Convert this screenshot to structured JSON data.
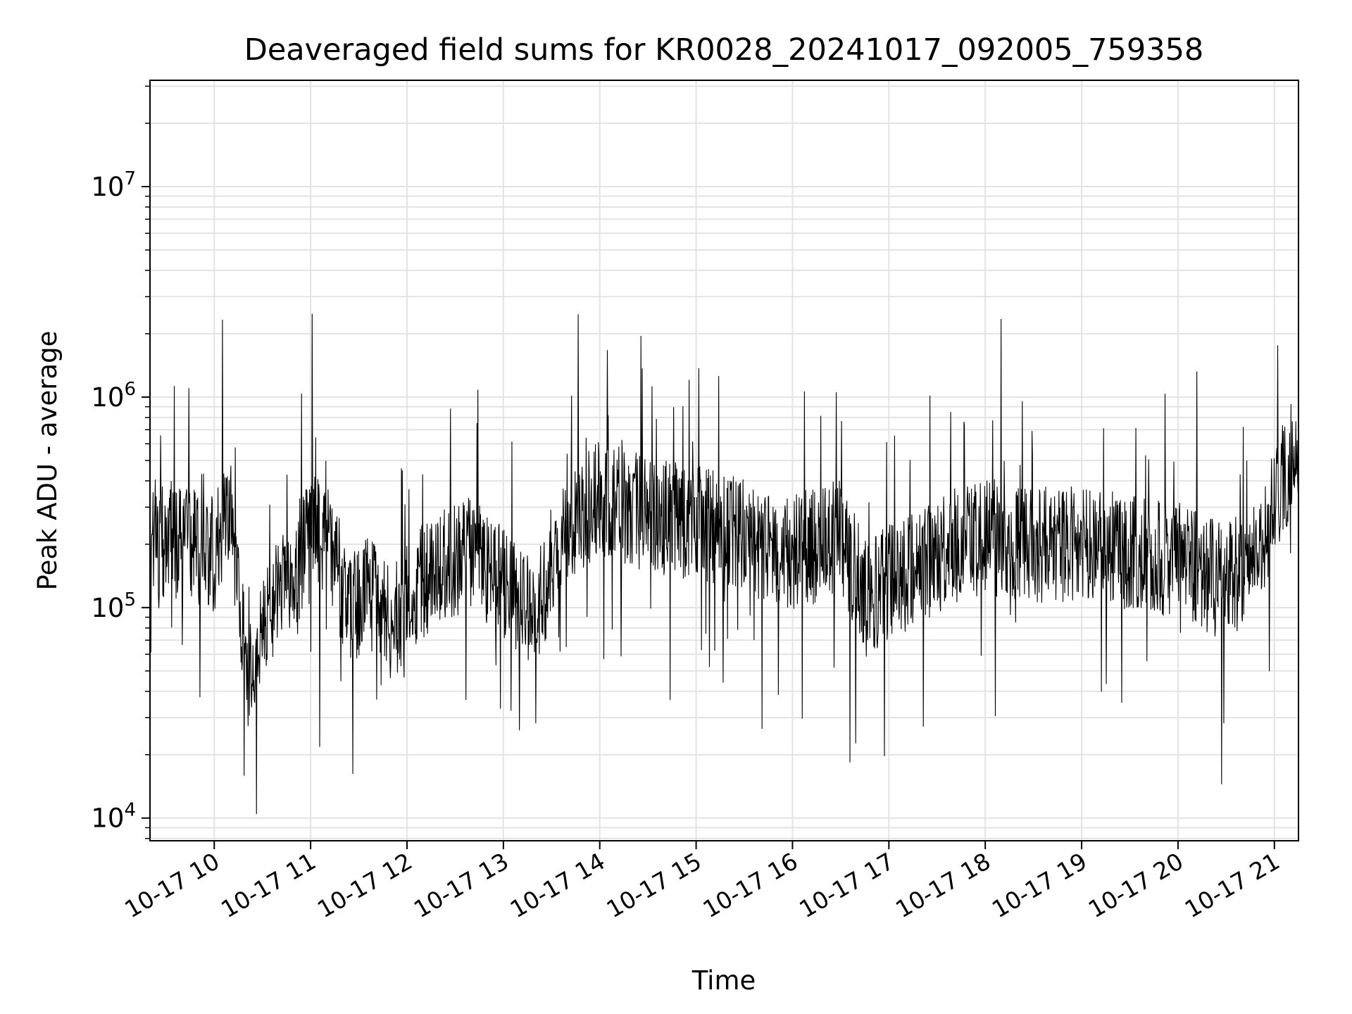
{
  "chart_data": {
    "type": "line",
    "title": "Deaveraged field sums for KR0028_20241017_092005_759358",
    "xlabel": "Time",
    "ylabel": "Peak ADU - average",
    "yscale": "log",
    "xlim": [
      "2024-10-17T09:20",
      "2024-10-17T21:15"
    ],
    "ylim": [
      7800,
      32000000
    ],
    "grid": true,
    "line_color": "#000000",
    "xticks": [
      {
        "t": "2024-10-17T10:00",
        "label": "10-17 10"
      },
      {
        "t": "2024-10-17T11:00",
        "label": "10-17 11"
      },
      {
        "t": "2024-10-17T12:00",
        "label": "10-17 12"
      },
      {
        "t": "2024-10-17T13:00",
        "label": "10-17 13"
      },
      {
        "t": "2024-10-17T14:00",
        "label": "10-17 14"
      },
      {
        "t": "2024-10-17T15:00",
        "label": "10-17 15"
      },
      {
        "t": "2024-10-17T16:00",
        "label": "10-17 16"
      },
      {
        "t": "2024-10-17T17:00",
        "label": "10-17 17"
      },
      {
        "t": "2024-10-17T18:00",
        "label": "10-17 18"
      },
      {
        "t": "2024-10-17T19:00",
        "label": "10-17 19"
      },
      {
        "t": "2024-10-17T20:00",
        "label": "10-17 20"
      },
      {
        "t": "2024-10-17T21:00",
        "label": "10-17 21"
      }
    ],
    "yticks": [
      {
        "value": 10000,
        "base": "10",
        "exp": "4"
      },
      {
        "value": 100000,
        "base": "10",
        "exp": "5"
      },
      {
        "value": 1000000,
        "base": "10",
        "exp": "6"
      },
      {
        "value": 10000000,
        "base": "10",
        "exp": "7"
      }
    ],
    "series": [
      {
        "x": [
          "2024-10-17T09:20",
          "2024-10-17T09:45",
          "2024-10-17T10:00",
          "2024-10-17T10:05",
          "2024-10-17T10:10",
          "2024-10-17T10:15",
          "2024-10-17T10:20",
          "2024-10-17T10:30",
          "2024-10-17T10:40",
          "2024-10-17T10:50",
          "2024-10-17T11:00",
          "2024-10-17T11:10",
          "2024-10-17T11:25",
          "2024-10-17T11:35",
          "2024-10-17T11:50",
          "2024-10-17T12:00",
          "2024-10-17T12:20",
          "2024-10-17T12:40",
          "2024-10-17T13:00",
          "2024-10-17T13:20",
          "2024-10-17T13:40",
          "2024-10-17T14:00",
          "2024-10-17T14:30",
          "2024-10-17T15:00",
          "2024-10-17T15:30",
          "2024-10-17T16:00",
          "2024-10-17T16:30",
          "2024-10-17T16:45",
          "2024-10-17T17:00",
          "2024-10-17T17:30",
          "2024-10-17T18:00",
          "2024-10-17T18:30",
          "2024-10-17T19:00",
          "2024-10-17T19:30",
          "2024-10-17T20:00",
          "2024-10-17T20:30",
          "2024-10-17T20:50",
          "2024-10-17T21:00",
          "2024-10-17T21:10",
          "2024-10-17T21:15"
        ],
        "y": [
          220000,
          200000,
          180000,
          250000,
          300000,
          120000,
          45000,
          70000,
          140000,
          120000,
          250000,
          200000,
          100000,
          120000,
          80000,
          110000,
          160000,
          180000,
          130000,
          100000,
          250000,
          330000,
          280000,
          250000,
          220000,
          180000,
          220000,
          110000,
          130000,
          180000,
          220000,
          200000,
          200000,
          180000,
          170000,
          130000,
          180000,
          300000,
          500000,
          600000
        ],
        "noise_decades": 0.28,
        "spike_decades": 0.55
      }
    ]
  }
}
